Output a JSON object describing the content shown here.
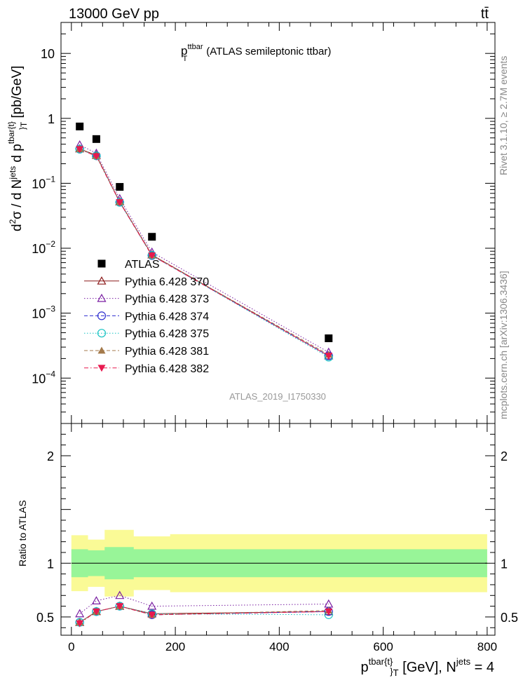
{
  "header": {
    "left": "13000 GeV pp",
    "right": "tt̄"
  },
  "side_labels": {
    "rivet": "Rivet 3.1.10, ≥ 2.7M events",
    "mcplots": "mcplots.cern.ch [arXiv:1306.3436]"
  },
  "chart_data": [
    {
      "type": "scatter",
      "title": "p_T^ttbar (ATLAS semileptonic ttbar)",
      "title_main": "p",
      "title_sub": "T",
      "title_sup": "ttbar",
      "title_rest": "(ATLAS semileptonic ttbar)",
      "analysis_id": "ATLAS_2019_I1750330",
      "ylabel": "d²σ / d N^jets d p^tbar{t}_T [pb/GeV]",
      "yscale": "log",
      "ylim": [
        2e-05,
        30
      ],
      "xlim": [
        0,
        800
      ],
      "yticks": [
        {
          "value": 10,
          "label": "10"
        },
        {
          "value": 1,
          "label": "1"
        },
        {
          "value": 0.1,
          "base": "10",
          "exp": "−1"
        },
        {
          "value": 0.01,
          "base": "10",
          "exp": "−2"
        },
        {
          "value": 0.001,
          "base": "10",
          "exp": "−3"
        },
        {
          "value": 0.0001,
          "base": "10",
          "exp": "−4"
        }
      ],
      "x": [
        16,
        48,
        93,
        155,
        495
      ],
      "bin_edges": [
        0,
        32,
        64,
        120,
        190,
        800
      ],
      "legend_placement": "lower-left",
      "series": [
        {
          "name": "ATLAS",
          "values": [
            0.75,
            0.48,
            0.088,
            0.015,
            0.00041
          ],
          "color": "#000000",
          "marker": "square-filled",
          "line": "none"
        },
        {
          "name": "Pythia 6.428 370",
          "values": [
            0.34,
            0.27,
            0.052,
            0.0079,
            0.00022
          ],
          "color": "#8b1a1a",
          "marker": "triangle-up-open",
          "line": "solid"
        },
        {
          "name": "Pythia 6.428 373",
          "values": [
            0.39,
            0.29,
            0.058,
            0.0087,
            0.00025
          ],
          "color": "#7a1fa2",
          "marker": "triangle-up-open",
          "line": "dotted"
        },
        {
          "name": "Pythia 6.428 374",
          "values": [
            0.335,
            0.265,
            0.051,
            0.0077,
            0.00022
          ],
          "color": "#2c2ccf",
          "marker": "circle-open",
          "line": "dashed"
        },
        {
          "name": "Pythia 6.428 375",
          "values": [
            0.335,
            0.265,
            0.051,
            0.0078,
            0.00021
          ],
          "color": "#17c3c3",
          "marker": "circle-open",
          "line": "dotted"
        },
        {
          "name": "Pythia 6.428 381",
          "values": [
            0.34,
            0.265,
            0.052,
            0.0078,
            0.00023
          ],
          "color": "#a47a4b",
          "marker": "triangle-up-filled",
          "line": "dashed"
        },
        {
          "name": "Pythia 6.428 382",
          "values": [
            0.335,
            0.26,
            0.051,
            0.0077,
            0.00022
          ],
          "color": "#e8194f",
          "marker": "triangle-down-filled",
          "line": "dashdot"
        }
      ]
    },
    {
      "type": "scatter",
      "ylabel": "Ratio to ATLAS",
      "ylim": [
        0.33,
        2.3
      ],
      "xlim": [
        0,
        800
      ],
      "yticks": [
        {
          "value": 0.5,
          "label": "0.5"
        },
        {
          "value": 1,
          "label": "1"
        },
        {
          "value": 2,
          "label": "2"
        }
      ],
      "xticks": [
        {
          "value": 0,
          "label": "0"
        },
        {
          "value": 200,
          "label": "200"
        },
        {
          "value": 400,
          "label": "400"
        },
        {
          "value": 600,
          "label": "600"
        },
        {
          "value": 800,
          "label": "800"
        }
      ],
      "xlabel": "p_T^tbar{t} [GeV], N^jets = 4",
      "x": [
        16,
        48,
        93,
        155,
        495
      ],
      "bin_edges": [
        0,
        32,
        64,
        120,
        190,
        800
      ],
      "band_stat": {
        "color": "#98f598",
        "half_width": [
          0.13,
          0.12,
          0.15,
          0.13,
          0.13
        ]
      },
      "band_total": {
        "color": "#fafa96",
        "half_width": [
          0.26,
          0.22,
          0.31,
          0.25,
          0.27
        ]
      },
      "series": [
        {
          "name": "Pythia 6.428 370",
          "values": [
            0.45,
            0.55,
            0.6,
            0.53,
            0.55
          ]
        },
        {
          "name": "Pythia 6.428 373",
          "values": [
            0.53,
            0.65,
            0.7,
            0.6,
            0.62
          ]
        },
        {
          "name": "Pythia 6.428 374",
          "values": [
            0.45,
            0.55,
            0.6,
            0.52,
            0.55
          ]
        },
        {
          "name": "Pythia 6.428 375",
          "values": [
            0.45,
            0.55,
            0.6,
            0.53,
            0.52
          ]
        },
        {
          "name": "Pythia 6.428 381",
          "values": [
            0.45,
            0.55,
            0.6,
            0.52,
            0.56
          ]
        },
        {
          "name": "Pythia 6.428 382",
          "values": [
            0.44,
            0.55,
            0.6,
            0.52,
            0.55
          ]
        }
      ]
    }
  ]
}
